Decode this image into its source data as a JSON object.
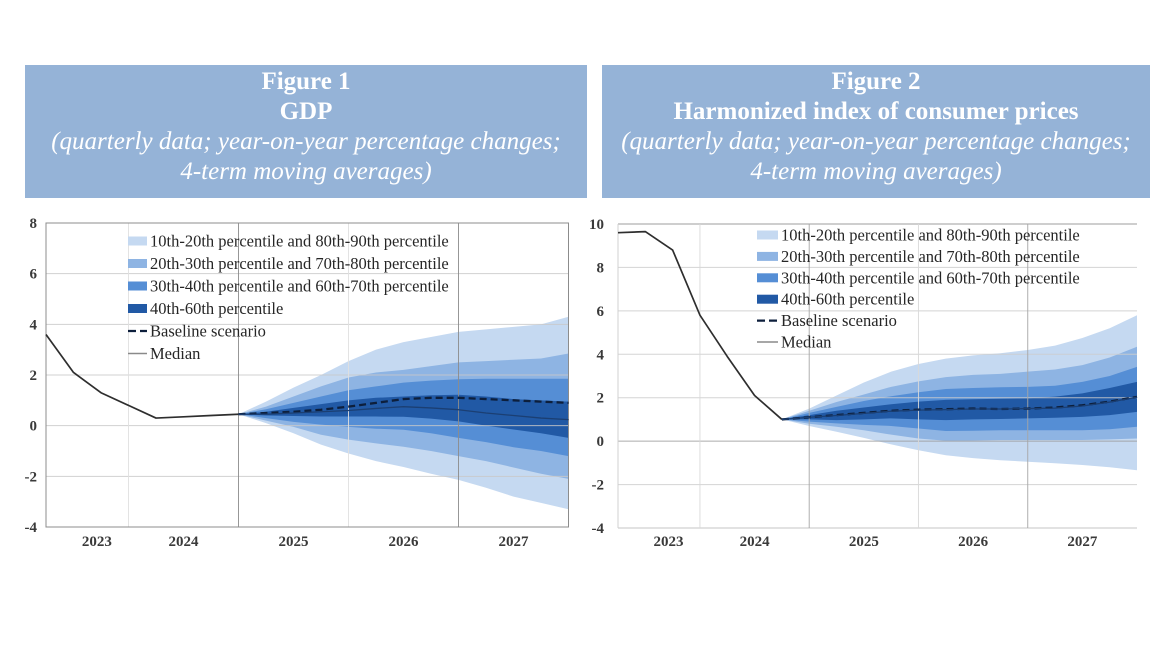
{
  "figures": [
    {
      "number": "Figure 1",
      "title": "GDP",
      "subtitle_line1": "(quarterly data; year-on-year percentage changes;",
      "subtitle_line2": "4-term moving averages)"
    },
    {
      "number": "Figure 2",
      "title": "Harmonized index of consumer prices",
      "subtitle_line1": "(quarterly data; year-on-year percentage changes;",
      "subtitle_line2": "4-term moving averages)"
    }
  ],
  "colors": {
    "header_background": "#95b3d7",
    "header_text": "#ffffff"
  },
  "chart_data": [
    {
      "type": "area",
      "figure_label": "Figure 1",
      "title": "GDP",
      "subtitle": "(quarterly data; year-on-year percentage changes; 4-term moving averages)",
      "xlabel": "",
      "ylabel": "",
      "x": [
        "2023Q1",
        "2023Q2",
        "2023Q3",
        "2023Q4",
        "2024Q1",
        "2024Q2",
        "2024Q3",
        "2024Q4",
        "2025Q1",
        "2025Q2",
        "2025Q3",
        "2025Q4",
        "2026Q1",
        "2026Q2",
        "2026Q3",
        "2026Q4",
        "2027Q1",
        "2027Q2",
        "2027Q3",
        "2027Q4"
      ],
      "xtick_labels": [
        "2023",
        "2024",
        "2025",
        "2026",
        "2027"
      ],
      "ylim": [
        -4,
        8
      ],
      "yticks": [
        8,
        6,
        4,
        2,
        0,
        -2,
        -4
      ],
      "grid": true,
      "legend_position": "top-left",
      "legend": [
        {
          "label": "10th-20th percentile and 80th-90th percentile",
          "kind": "band",
          "color": "#c5d9f1",
          "lower": "p10",
          "upper": "p90"
        },
        {
          "label": "20th-30th percentile and 70th-80th percentile",
          "kind": "band",
          "color": "#8eb4e3",
          "lower": "p20",
          "upper": "p80"
        },
        {
          "label": "30th-40th percentile and 60th-70th percentile",
          "kind": "band",
          "color": "#558ed5",
          "lower": "p30",
          "upper": "p70"
        },
        {
          "label": "40th-60th percentile",
          "kind": "band",
          "color": "#2159a5",
          "lower": "p40",
          "upper": "p60"
        },
        {
          "label": "Baseline scenario",
          "kind": "dashed",
          "color": "#0d1f3c"
        },
        {
          "label": "Median",
          "kind": "line",
          "color": "#8a8a8a"
        }
      ],
      "fan": {
        "start": "2024Q4",
        "percentiles": {
          "p90": [
            0.45,
            0.95,
            1.5,
            2.0,
            2.55,
            3.0,
            3.3,
            3.5,
            3.7,
            3.8,
            3.9,
            4.0,
            4.3
          ],
          "p80": [
            0.45,
            0.75,
            1.15,
            1.55,
            1.9,
            2.1,
            2.2,
            2.35,
            2.5,
            2.55,
            2.6,
            2.65,
            2.85
          ],
          "p70": [
            0.45,
            0.65,
            0.9,
            1.15,
            1.4,
            1.55,
            1.7,
            1.78,
            1.83,
            1.85,
            1.85,
            1.85,
            1.85
          ],
          "p60": [
            0.45,
            0.55,
            0.7,
            0.85,
            1.0,
            1.1,
            1.15,
            1.2,
            1.22,
            1.15,
            1.05,
            1.0,
            0.95
          ],
          "p40": [
            0.45,
            0.4,
            0.38,
            0.36,
            0.36,
            0.36,
            0.35,
            0.28,
            0.17,
            0.0,
            -0.15,
            -0.3,
            -0.48
          ],
          "p30": [
            0.45,
            0.3,
            0.15,
            0.04,
            -0.05,
            -0.12,
            -0.16,
            -0.3,
            -0.48,
            -0.65,
            -0.85,
            -1.0,
            -1.2
          ],
          "p20": [
            0.45,
            0.2,
            -0.05,
            -0.36,
            -0.55,
            -0.7,
            -0.83,
            -1.0,
            -1.2,
            -1.4,
            -1.65,
            -1.9,
            -2.1
          ],
          "p10": [
            0.45,
            0.1,
            -0.3,
            -0.75,
            -1.1,
            -1.4,
            -1.63,
            -1.9,
            -2.14,
            -2.45,
            -2.8,
            -3.05,
            -3.3
          ]
        }
      },
      "series": [
        {
          "name": "history",
          "start": "2023Q1",
          "style": "solid",
          "color": "#2e2e2e",
          "values": [
            3.6,
            2.1,
            1.3,
            0.8,
            0.3,
            0.35,
            0.4,
            0.45
          ]
        },
        {
          "name": "Baseline scenario",
          "start": "2024Q4",
          "style": "dashed",
          "color": "#0d1f3c",
          "values": [
            0.45,
            0.5,
            0.55,
            0.63,
            0.75,
            0.9,
            1.05,
            1.1,
            1.1,
            1.05,
            1.0,
            0.95,
            0.9
          ]
        },
        {
          "name": "Median",
          "start": "2024Q4",
          "style": "thin",
          "color": "#1b3f73",
          "values": [
            0.45,
            0.45,
            0.5,
            0.55,
            0.6,
            0.68,
            0.75,
            0.7,
            0.63,
            0.5,
            0.4,
            0.3,
            0.24
          ]
        }
      ]
    },
    {
      "type": "area",
      "figure_label": "Figure 2",
      "title": "Harmonized index of consumer prices",
      "subtitle": "(quarterly data; year-on-year percentage changes; 4-term moving averages)",
      "xlabel": "",
      "ylabel": "",
      "x": [
        "2023Q1",
        "2023Q2",
        "2023Q3",
        "2023Q4",
        "2024Q1",
        "2024Q2",
        "2024Q3",
        "2024Q4",
        "2025Q1",
        "2025Q2",
        "2025Q3",
        "2025Q4",
        "2026Q1",
        "2026Q2",
        "2026Q3",
        "2026Q4",
        "2027Q1",
        "2027Q2",
        "2027Q3",
        "2027Q4"
      ],
      "xtick_labels": [
        "2023",
        "2024",
        "2025",
        "2026",
        "2027"
      ],
      "ylim": [
        -4,
        10
      ],
      "yticks": [
        10,
        8,
        6,
        4,
        2,
        0,
        -2,
        -4
      ],
      "grid": true,
      "legend_position": "top-right",
      "legend": [
        {
          "label": "10th-20th percentile and 80th-90th percentile",
          "kind": "band",
          "color": "#c5d9f1",
          "lower": "p10",
          "upper": "p90"
        },
        {
          "label": "20th-30th percentile and 70th-80th percentile",
          "kind": "band",
          "color": "#8eb4e3",
          "lower": "p20",
          "upper": "p80"
        },
        {
          "label": "30th-40th percentile and 60th-70th percentile",
          "kind": "band",
          "color": "#558ed5",
          "lower": "p30",
          "upper": "p70"
        },
        {
          "label": "40th-60th percentile",
          "kind": "band",
          "color": "#2159a5",
          "lower": "p40",
          "upper": "p60"
        },
        {
          "label": "Baseline scenario",
          "kind": "dashed",
          "color": "#0d1f3c"
        },
        {
          "label": "Median",
          "kind": "line",
          "color": "#8a8a8a"
        }
      ],
      "fan": {
        "start": "2024Q3",
        "percentiles": {
          "p90": [
            1.0,
            1.5,
            2.1,
            2.7,
            3.2,
            3.55,
            3.8,
            3.95,
            4.05,
            4.2,
            4.4,
            4.75,
            5.2,
            5.8
          ],
          "p80": [
            1.0,
            1.4,
            1.8,
            2.15,
            2.5,
            2.75,
            2.95,
            3.05,
            3.1,
            3.2,
            3.3,
            3.5,
            3.85,
            4.35
          ],
          "p70": [
            1.0,
            1.3,
            1.58,
            1.85,
            2.07,
            2.25,
            2.4,
            2.45,
            2.48,
            2.5,
            2.55,
            2.73,
            3.0,
            3.42
          ],
          "p60": [
            1.0,
            1.2,
            1.4,
            1.55,
            1.7,
            1.82,
            1.9,
            1.93,
            1.95,
            1.97,
            2.05,
            2.2,
            2.45,
            2.73
          ],
          "p40": [
            1.0,
            1.0,
            0.97,
            1.0,
            1.05,
            1.0,
            0.97,
            1.0,
            1.02,
            1.05,
            1.08,
            1.12,
            1.2,
            1.35
          ],
          "p30": [
            1.0,
            0.9,
            0.82,
            0.75,
            0.7,
            0.58,
            0.47,
            0.48,
            0.5,
            0.5,
            0.5,
            0.5,
            0.55,
            0.66
          ],
          "p20": [
            1.0,
            0.8,
            0.66,
            0.5,
            0.3,
            0.12,
            0.02,
            0.03,
            0.05,
            0.05,
            0.05,
            0.05,
            0.08,
            0.12
          ],
          "p10": [
            1.0,
            0.7,
            0.43,
            0.15,
            -0.15,
            -0.42,
            -0.65,
            -0.78,
            -0.88,
            -0.95,
            -1.02,
            -1.1,
            -1.2,
            -1.34
          ]
        }
      },
      "series": [
        {
          "name": "history",
          "start": "2023Q1",
          "style": "solid",
          "color": "#2e2e2e",
          "values": [
            9.6,
            9.65,
            8.8,
            5.8,
            3.9,
            2.1,
            1.0
          ]
        },
        {
          "name": "Baseline scenario",
          "start": "2024Q3",
          "style": "dashed",
          "color": "#0d1f3c",
          "values": [
            1.0,
            1.1,
            1.2,
            1.3,
            1.4,
            1.45,
            1.47,
            1.5,
            1.48,
            1.5,
            1.55,
            1.65,
            1.82,
            2.04
          ]
        },
        {
          "name": "Median",
          "start": "2024Q3",
          "style": "thin",
          "color": "#1b3f73",
          "values": [
            1.0,
            1.1,
            1.18,
            1.28,
            1.38,
            1.43,
            1.45,
            1.48,
            1.48,
            1.5,
            1.52,
            1.62,
            1.8,
            2.02
          ]
        }
      ]
    }
  ]
}
